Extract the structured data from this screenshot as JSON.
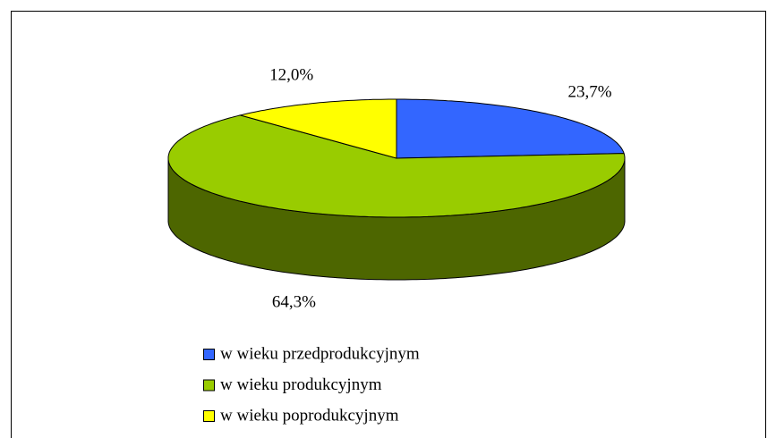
{
  "chart_data": {
    "type": "pie3d",
    "categories": [
      "w wieku przedprodukcyjnym",
      "w wieku produkcyjnym",
      "w wieku poprodukcyjnym"
    ],
    "values": [
      23.7,
      64.3,
      12.0
    ],
    "value_labels": [
      "23,7%",
      "64,3%",
      "12,0%"
    ],
    "colors": [
      "#3366ff",
      "#99cc00",
      "#ffff00"
    ],
    "legend": "bottom"
  }
}
